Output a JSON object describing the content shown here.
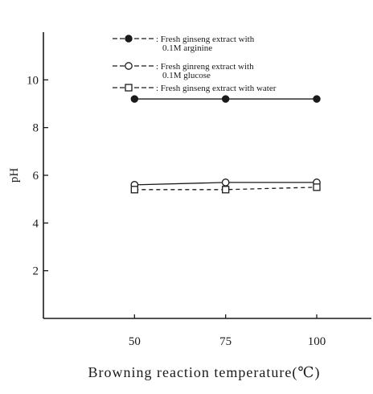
{
  "chart_data": {
    "type": "line",
    "xlabel": "Browning reaction temperature(℃)",
    "ylabel": "pH",
    "x": [
      50,
      75,
      100
    ],
    "x_ticks": [
      "50",
      "75",
      "100"
    ],
    "y_ticks": [
      "2",
      "4",
      "6",
      "8",
      "10"
    ],
    "xlim": [
      25,
      115
    ],
    "ylim": [
      0,
      12
    ],
    "grid": false,
    "legend_position": "top",
    "series": [
      {
        "name": ": Fresh ginseng extract with 0.1M arginine",
        "legend_lines": [
          ": Fresh ginseng extract with",
          "0.1M arginine"
        ],
        "marker": "filled-circle",
        "line_style": "solid",
        "values": [
          9.2,
          9.2,
          9.2
        ]
      },
      {
        "name": ": Fresh ginreng extract with 0.1M glucose",
        "legend_lines": [
          ": Fresh ginreng extract with",
          "0.1M glucose"
        ],
        "marker": "open-circle",
        "line_style": "solid",
        "values": [
          5.6,
          5.7,
          5.7
        ]
      },
      {
        "name": ": Fresh ginseng extract with water",
        "legend_lines": [
          ": Fresh ginseng extract with water"
        ],
        "marker": "open-square",
        "line_style": "dashed",
        "values": [
          5.4,
          5.4,
          5.5
        ]
      }
    ]
  },
  "colors": {
    "ink": "#1a1a1a",
    "background": "#ffffff"
  }
}
